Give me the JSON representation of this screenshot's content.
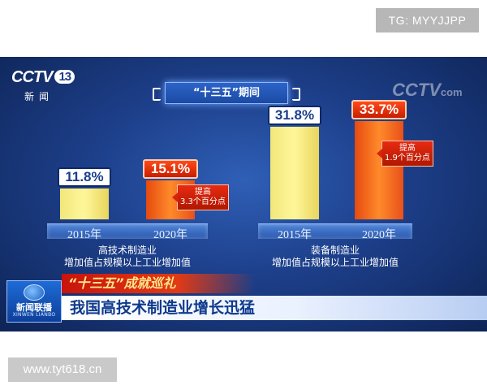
{
  "watermarks": {
    "top": "TG: MYYJJPP",
    "bottom": "www.tyt618.cn"
  },
  "channel": {
    "logo": "CCTV",
    "channel_number": "13",
    "subtitle": "新闻",
    "corner_logo": "CCTV",
    "corner_suffix": "com"
  },
  "header_tag": "“十三五”期间",
  "chart_data": [
    {
      "type": "bar",
      "categories": [
        "2015年",
        "2020年"
      ],
      "values": [
        11.8,
        15.1
      ],
      "value_labels": [
        "11.8%",
        "15.1%"
      ],
      "caption_lines": [
        "高技术制造业",
        "增加值占规模以上工业增加值"
      ],
      "callout_lines": [
        "提高",
        "3.3个百分点"
      ],
      "colors": [
        "#f5e87a",
        "#f06a1e"
      ]
    },
    {
      "type": "bar",
      "categories": [
        "2015年",
        "2020年"
      ],
      "values": [
        31.8,
        33.7
      ],
      "value_labels": [
        "31.8%",
        "33.7%"
      ],
      "caption_lines": [
        "装备制造业",
        "增加值占规模以上工业增加值"
      ],
      "callout_lines": [
        "提高",
        "1.9个百分点"
      ],
      "colors": [
        "#f5e87a",
        "#f06a1e"
      ]
    }
  ],
  "banner": {
    "program_logo": "新闻联播",
    "program_logo_en": "XINWEN LIANBO",
    "series_title": "“十三五”成就巡礼",
    "headline": "我国高技术制造业增长迅猛"
  }
}
